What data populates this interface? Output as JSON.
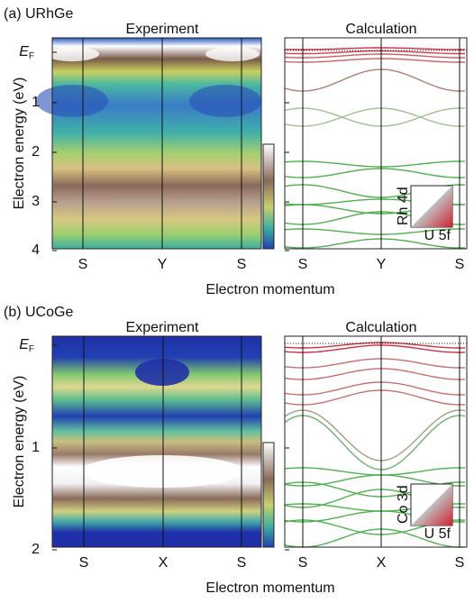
{
  "panels": [
    {
      "label": "(a) URhGe",
      "experiment_title": "Experiment",
      "calculation_title": "Calculation",
      "y_axis_label": "Electron energy (eV)",
      "fermi_label": {
        "main": "E",
        "sub": "F"
      },
      "y_ticks": [
        "1",
        "2",
        "3",
        "4"
      ],
      "x_ticks": [
        "S",
        "Y",
        "S"
      ],
      "calc_x_ticks": [
        "S",
        "Y",
        "S"
      ],
      "x_axis_label": "Electron momentum",
      "legend": {
        "top": "Rh 4d",
        "bottom": "U 5f"
      }
    },
    {
      "label": "(b) UCoGe",
      "experiment_title": "Experiment",
      "calculation_title": "Calculation",
      "y_axis_label": "Electron energy (eV)",
      "fermi_label": {
        "main": "E",
        "sub": "F"
      },
      "y_ticks": [
        "1",
        "2"
      ],
      "x_ticks": [
        "S",
        "X",
        "S"
      ],
      "calc_x_ticks": [
        "S",
        "X",
        "S"
      ],
      "x_axis_label": "Electron momentum",
      "legend": {
        "top": "Co 3d",
        "bottom": "U 5f"
      }
    }
  ]
}
